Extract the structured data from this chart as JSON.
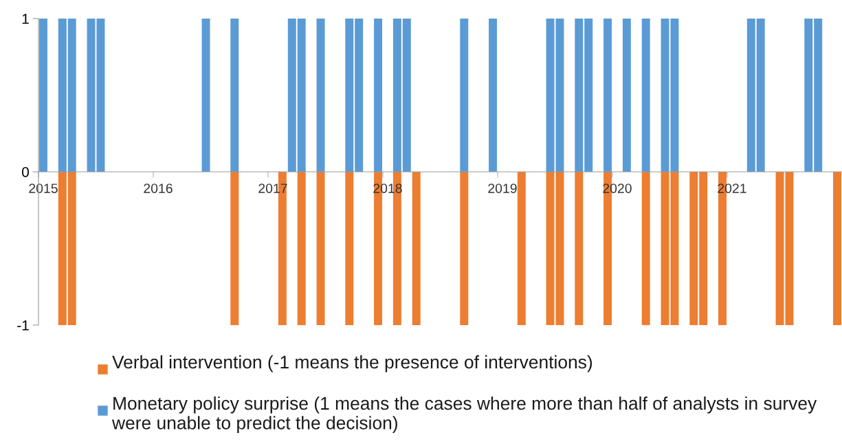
{
  "chart_data": {
    "type": "bar",
    "categories": [
      "2015",
      null,
      null,
      null,
      null,
      null,
      null,
      null,
      null,
      null,
      null,
      null,
      "2016",
      null,
      null,
      null,
      null,
      null,
      null,
      null,
      null,
      null,
      null,
      null,
      "2017",
      null,
      null,
      null,
      null,
      null,
      null,
      null,
      null,
      null,
      null,
      null,
      "2018",
      null,
      null,
      null,
      null,
      null,
      null,
      null,
      null,
      null,
      null,
      null,
      "2019",
      null,
      null,
      null,
      null,
      null,
      null,
      null,
      null,
      null,
      null,
      null,
      "2020",
      null,
      null,
      null,
      null,
      null,
      null,
      null,
      null,
      null,
      null,
      null,
      "2021",
      null,
      null,
      null,
      null,
      null,
      null,
      null,
      null,
      null,
      null,
      null
    ],
    "series": [
      {
        "name": "Verbal intervention (-1 means the presence of interventions)",
        "color": "#ed7d31",
        "values": [
          null,
          null,
          -1,
          -1,
          null,
          null,
          null,
          null,
          null,
          null,
          null,
          null,
          null,
          null,
          null,
          null,
          null,
          null,
          null,
          null,
          -1,
          null,
          null,
          null,
          null,
          -1,
          null,
          -1,
          null,
          -1,
          null,
          null,
          -1,
          null,
          null,
          -1,
          null,
          -1,
          null,
          -1,
          null,
          null,
          null,
          null,
          -1,
          null,
          null,
          null,
          null,
          null,
          -1,
          null,
          null,
          -1,
          -1,
          null,
          -1,
          null,
          null,
          -1,
          null,
          null,
          null,
          -1,
          null,
          -1,
          -1,
          null,
          -1,
          -1,
          null,
          -1,
          null,
          null,
          null,
          null,
          null,
          -1,
          -1,
          null,
          null,
          null,
          null,
          -1
        ]
      },
      {
        "name": "Monetary policy surprise (1 means the cases where more than half of analysts in survey were unable to predict the decision)",
        "color": "#5b9bd5",
        "values": [
          1,
          null,
          1,
          1,
          null,
          1,
          1,
          null,
          null,
          null,
          null,
          null,
          null,
          null,
          null,
          null,
          null,
          1,
          null,
          null,
          1,
          null,
          null,
          null,
          null,
          null,
          1,
          1,
          null,
          1,
          null,
          null,
          1,
          1,
          null,
          1,
          null,
          1,
          1,
          null,
          null,
          null,
          null,
          null,
          1,
          null,
          null,
          1,
          null,
          null,
          null,
          null,
          null,
          1,
          1,
          null,
          1,
          1,
          null,
          1,
          null,
          1,
          null,
          1,
          null,
          1,
          1,
          null,
          null,
          null,
          null,
          null,
          null,
          null,
          1,
          1,
          null,
          null,
          null,
          null,
          1,
          1,
          null,
          null
        ]
      }
    ],
    "ylim": [
      -1,
      1
    ],
    "yticks": [
      -1,
      0,
      1
    ],
    "grid": false,
    "legend": "bottom"
  }
}
